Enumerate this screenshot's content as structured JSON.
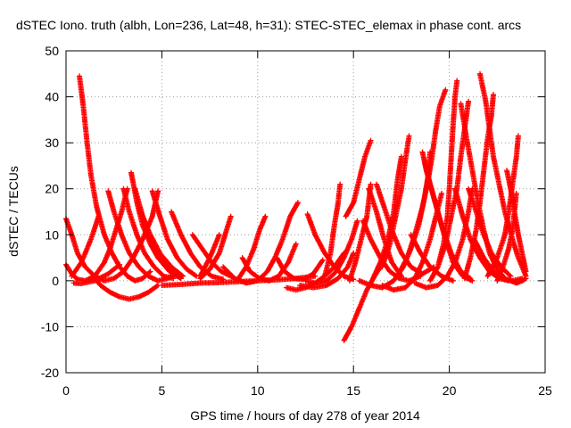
{
  "chart_data": {
    "type": "scatter",
    "title": "dSTEC Iono. truth (albh, Lon=236, Lat=48, h=31): STEC-STEC_elemax in phase cont. arcs",
    "xlabel": "GPS time / hours of day 278 of year 2014",
    "ylabel": "dSTEC  / TECUs",
    "xlim": [
      0,
      25
    ],
    "ylim": [
      -20,
      50
    ],
    "xticks": [
      0,
      5,
      10,
      15,
      20,
      25
    ],
    "yticks": [
      -20,
      -10,
      0,
      10,
      20,
      30,
      40,
      50
    ],
    "grid": true,
    "marker": "plus",
    "color": "#ff0000",
    "arcs": [
      [
        [
          0.0,
          13.5
        ],
        [
          0.3,
          10
        ],
        [
          0.6,
          6
        ],
        [
          1.0,
          3
        ],
        [
          1.5,
          1
        ],
        [
          2.0,
          0
        ],
        [
          2.5,
          0.5
        ],
        [
          3.0,
          2
        ],
        [
          3.5,
          5
        ],
        [
          4.0,
          9
        ],
        [
          4.5,
          14
        ],
        [
          4.8,
          19.5
        ]
      ],
      [
        [
          0.0,
          3.5
        ],
        [
          0.3,
          1.5
        ],
        [
          0.6,
          0.3
        ],
        [
          1.0,
          0
        ],
        [
          1.5,
          1
        ],
        [
          2.0,
          4
        ],
        [
          2.3,
          7
        ],
        [
          2.6,
          11
        ],
        [
          2.9,
          15
        ],
        [
          3.2,
          20
        ]
      ],
      [
        [
          0.3,
          1
        ],
        [
          0.8,
          4
        ],
        [
          1.3,
          9
        ],
        [
          1.7,
          14
        ]
      ],
      [
        [
          0.7,
          44.5
        ],
        [
          0.9,
          38
        ],
        [
          1.1,
          30
        ],
        [
          1.3,
          23
        ],
        [
          1.6,
          16
        ],
        [
          2.0,
          10
        ],
        [
          2.4,
          6
        ],
        [
          2.8,
          3
        ],
        [
          3.2,
          1
        ],
        [
          3.6,
          0
        ],
        [
          4.0,
          0.5
        ],
        [
          4.4,
          2
        ]
      ],
      [
        [
          0.4,
          -0.5
        ],
        [
          0.8,
          -0.6
        ],
        [
          1.5,
          0
        ],
        [
          2.2,
          1.5
        ],
        [
          2.8,
          3.5
        ]
      ],
      [
        [
          1.5,
          0.5
        ],
        [
          1.8,
          -1
        ],
        [
          2.3,
          -2.5
        ],
        [
          2.8,
          -3.5
        ],
        [
          3.3,
          -4
        ],
        [
          3.8,
          -3.5
        ],
        [
          4.3,
          -2.5
        ],
        [
          4.8,
          -1
        ]
      ],
      [
        [
          2.2,
          19.5
        ],
        [
          2.5,
          15
        ],
        [
          2.9,
          10
        ],
        [
          3.3,
          6
        ],
        [
          3.8,
          3
        ],
        [
          4.3,
          1
        ],
        [
          4.8,
          0
        ],
        [
          5.3,
          0.5
        ],
        [
          5.8,
          1.5
        ]
      ],
      [
        [
          3.0,
          20
        ],
        [
          3.3,
          15
        ],
        [
          3.7,
          10
        ],
        [
          4.1,
          6
        ],
        [
          4.6,
          3
        ],
        [
          5.1,
          1
        ],
        [
          5.6,
          0.5
        ]
      ],
      [
        [
          3.4,
          23.5
        ],
        [
          3.7,
          17
        ],
        [
          4.0,
          12
        ],
        [
          4.4,
          8
        ],
        [
          4.8,
          5
        ],
        [
          5.3,
          2.5
        ],
        [
          5.8,
          1
        ]
      ],
      [
        [
          3.6,
          20
        ],
        [
          4.0,
          14
        ],
        [
          4.4,
          9
        ],
        [
          4.9,
          5
        ],
        [
          5.4,
          2
        ],
        [
          6.0,
          0.5
        ]
      ],
      [
        [
          4.5,
          19.5
        ],
        [
          4.9,
          14
        ],
        [
          5.3,
          9
        ],
        [
          5.8,
          5
        ],
        [
          6.3,
          2.5
        ],
        [
          6.8,
          1
        ]
      ],
      [
        [
          3.9,
          15
        ],
        [
          4.4,
          10
        ],
        [
          4.9,
          6
        ],
        [
          5.5,
          3
        ],
        [
          6.1,
          1
        ]
      ],
      [
        [
          5.5,
          15
        ],
        [
          6.0,
          10
        ],
        [
          6.5,
          6
        ],
        [
          7.0,
          3
        ],
        [
          7.6,
          1
        ],
        [
          8.2,
          0.3
        ]
      ],
      [
        [
          6.6,
          10
        ],
        [
          7.1,
          7
        ],
        [
          7.6,
          4
        ],
        [
          8.1,
          2
        ],
        [
          8.7,
          0.8
        ]
      ],
      [
        [
          5.0,
          -1
        ],
        [
          6.0,
          -0.8
        ],
        [
          7.0,
          -0.5
        ],
        [
          8.0,
          -0.4
        ],
        [
          9.0,
          -0.2
        ],
        [
          10.0,
          0
        ],
        [
          11.0,
          0.2
        ],
        [
          12.0,
          0.5
        ],
        [
          13.0,
          1
        ]
      ],
      [
        [
          7.0,
          0.5
        ],
        [
          7.5,
          2.5
        ],
        [
          8.0,
          6
        ],
        [
          8.3,
          10
        ],
        [
          8.6,
          14
        ]
      ],
      [
        [
          7.0,
          1
        ],
        [
          7.5,
          5
        ],
        [
          8.0,
          10
        ]
      ],
      [
        [
          8.2,
          3
        ],
        [
          8.8,
          0.5
        ],
        [
          9.4,
          -0.5
        ],
        [
          10.0,
          0
        ],
        [
          10.5,
          2
        ],
        [
          10.9,
          5
        ],
        [
          11.3,
          9
        ],
        [
          11.7,
          14
        ],
        [
          12.1,
          17
        ]
      ],
      [
        [
          9.0,
          0.5
        ],
        [
          9.4,
          3
        ],
        [
          9.8,
          7
        ],
        [
          10.1,
          11
        ],
        [
          10.4,
          14
        ]
      ],
      [
        [
          9.2,
          5
        ],
        [
          9.6,
          2
        ],
        [
          10.1,
          0.5
        ],
        [
          10.6,
          0
        ],
        [
          11.1,
          1
        ],
        [
          11.6,
          4
        ],
        [
          12.0,
          8
        ]
      ],
      [
        [
          11.0,
          5
        ],
        [
          11.4,
          2
        ],
        [
          11.9,
          0.5
        ],
        [
          12.4,
          0.3
        ],
        [
          12.9,
          1.5
        ],
        [
          13.4,
          4.5
        ]
      ],
      [
        [
          11.5,
          -1.5
        ],
        [
          12.0,
          -2
        ],
        [
          12.5,
          -1.5
        ],
        [
          13.0,
          -0.5
        ],
        [
          13.5,
          1
        ],
        [
          14.0,
          3
        ],
        [
          14.5,
          6
        ]
      ],
      [
        [
          12.6,
          14.5
        ],
        [
          13.0,
          10
        ],
        [
          13.5,
          6
        ],
        [
          14.0,
          3
        ],
        [
          14.5,
          1
        ],
        [
          15.0,
          0.3
        ]
      ],
      [
        [
          12.5,
          0
        ],
        [
          13.0,
          -0.5
        ],
        [
          13.6,
          0
        ],
        [
          14.1,
          2
        ],
        [
          14.5,
          5
        ],
        [
          14.9,
          9
        ],
        [
          15.2,
          13
        ]
      ],
      [
        [
          12.2,
          -1
        ],
        [
          12.9,
          -1.5
        ],
        [
          13.6,
          -1
        ],
        [
          14.2,
          0.5
        ],
        [
          14.7,
          3
        ],
        [
          15.0,
          6
        ]
      ],
      [
        [
          14.8,
          0
        ],
        [
          15.1,
          4
        ],
        [
          15.4,
          9
        ],
        [
          15.7,
          14
        ],
        [
          15.9,
          21
        ]
      ],
      [
        [
          13.5,
          1
        ],
        [
          13.8,
          6
        ],
        [
          14.0,
          12
        ],
        [
          14.2,
          17
        ],
        [
          14.3,
          21
        ]
      ],
      [
        [
          14.5,
          -13
        ],
        [
          14.9,
          -10
        ],
        [
          15.3,
          -6
        ],
        [
          15.7,
          -2
        ],
        [
          16.1,
          1
        ],
        [
          16.4,
          3
        ]
      ],
      [
        [
          15.5,
          13
        ],
        [
          15.9,
          9
        ],
        [
          16.4,
          5
        ],
        [
          16.9,
          2
        ],
        [
          17.4,
          0.5
        ],
        [
          17.9,
          0
        ],
        [
          18.5,
          1
        ]
      ],
      [
        [
          14.6,
          14
        ],
        [
          15.0,
          17
        ],
        [
          15.3,
          22
        ],
        [
          15.6,
          27
        ],
        [
          15.9,
          30.5
        ]
      ],
      [
        [
          15.3,
          0
        ],
        [
          15.9,
          -1
        ],
        [
          16.5,
          -1.5
        ],
        [
          17.1,
          0
        ],
        [
          17.6,
          3
        ],
        [
          18.0,
          7
        ],
        [
          18.4,
          12
        ],
        [
          18.7,
          18
        ],
        [
          18.9,
          23
        ],
        [
          19.0,
          28
        ]
      ],
      [
        [
          15.8,
          20
        ],
        [
          16.2,
          15
        ],
        [
          16.6,
          9
        ],
        [
          17.0,
          4
        ],
        [
          17.5,
          1
        ]
      ],
      [
        [
          16.0,
          0.3
        ],
        [
          16.4,
          4
        ],
        [
          16.8,
          9
        ],
        [
          17.1,
          15
        ],
        [
          17.3,
          22
        ],
        [
          17.5,
          27
        ]
      ],
      [
        [
          16.2,
          21
        ],
        [
          16.6,
          16
        ],
        [
          17.0,
          11
        ],
        [
          17.5,
          6
        ],
        [
          18.0,
          3
        ],
        [
          18.6,
          1.5
        ],
        [
          19.2,
          3
        ]
      ],
      [
        [
          16.5,
          3
        ],
        [
          16.9,
          8
        ],
        [
          17.2,
          14
        ],
        [
          17.5,
          20
        ],
        [
          17.7,
          26
        ],
        [
          17.9,
          31.5
        ]
      ],
      [
        [
          17.3,
          1
        ],
        [
          17.8,
          5
        ],
        [
          18.2,
          10
        ],
        [
          18.6,
          16
        ],
        [
          18.9,
          22
        ],
        [
          19.1,
          27
        ],
        [
          19.3,
          33
        ],
        [
          19.5,
          38
        ],
        [
          19.8,
          41.5
        ]
      ],
      [
        [
          16.5,
          -1
        ],
        [
          17.1,
          -2
        ],
        [
          17.7,
          -1.5
        ],
        [
          18.2,
          0.5
        ],
        [
          18.6,
          4
        ],
        [
          19.0,
          9
        ],
        [
          19.3,
          14
        ],
        [
          19.6,
          19
        ]
      ],
      [
        [
          18.7,
          26
        ],
        [
          19.0,
          21
        ],
        [
          19.4,
          15
        ],
        [
          19.8,
          9
        ],
        [
          20.2,
          4
        ],
        [
          20.7,
          1
        ],
        [
          21.2,
          0
        ]
      ],
      [
        [
          18.6,
          28
        ],
        [
          18.8,
          24
        ],
        [
          19.2,
          18
        ],
        [
          19.6,
          12
        ],
        [
          20.1,
          6
        ],
        [
          20.6,
          2
        ],
        [
          21.1,
          0.5
        ]
      ],
      [
        [
          18.0,
          10
        ],
        [
          18.5,
          6
        ],
        [
          19.0,
          3
        ],
        [
          19.6,
          1
        ],
        [
          20.2,
          0
        ]
      ],
      [
        [
          18.2,
          -0.5
        ],
        [
          18.8,
          -1.5
        ],
        [
          19.4,
          -1
        ],
        [
          19.9,
          1
        ],
        [
          20.3,
          4
        ],
        [
          20.7,
          9
        ],
        [
          21.0,
          15
        ],
        [
          21.2,
          20
        ]
      ],
      [
        [
          19.0,
          0
        ],
        [
          19.4,
          3
        ],
        [
          19.8,
          8
        ],
        [
          20.1,
          14
        ],
        [
          20.4,
          20
        ],
        [
          20.6,
          27
        ],
        [
          20.8,
          33
        ],
        [
          21.0,
          39
        ]
      ],
      [
        [
          19.4,
          3
        ],
        [
          19.7,
          8
        ],
        [
          19.9,
          14
        ],
        [
          20.0,
          20
        ],
        [
          20.1,
          27
        ],
        [
          20.2,
          34
        ],
        [
          20.3,
          40
        ],
        [
          20.4,
          43.5
        ]
      ],
      [
        [
          20.6,
          38.5
        ],
        [
          20.9,
          31
        ],
        [
          21.2,
          24
        ],
        [
          21.5,
          17
        ],
        [
          21.8,
          11
        ],
        [
          22.1,
          6
        ],
        [
          22.5,
          2.5
        ],
        [
          22.9,
          0.5
        ]
      ],
      [
        [
          20.3,
          20
        ],
        [
          20.7,
          14
        ],
        [
          21.1,
          9
        ],
        [
          21.6,
          5
        ],
        [
          22.1,
          2
        ],
        [
          22.6,
          0.5
        ],
        [
          23.1,
          0
        ]
      ],
      [
        [
          20.8,
          0.5
        ],
        [
          21.1,
          5
        ],
        [
          21.4,
          11
        ],
        [
          21.6,
          17
        ],
        [
          21.8,
          24
        ],
        [
          22.0,
          31
        ],
        [
          22.2,
          36
        ],
        [
          22.3,
          40.5
        ]
      ],
      [
        [
          21.6,
          45
        ],
        [
          21.9,
          39
        ],
        [
          22.1,
          33
        ],
        [
          22.3,
          27
        ],
        [
          22.6,
          21
        ],
        [
          22.9,
          15
        ],
        [
          23.3,
          9
        ],
        [
          23.6,
          5
        ],
        [
          24.0,
          1
        ]
      ],
      [
        [
          21.3,
          9
        ],
        [
          21.8,
          5
        ],
        [
          22.3,
          2
        ],
        [
          22.8,
          0.5
        ],
        [
          23.3,
          0
        ],
        [
          23.8,
          0.5
        ]
      ],
      [
        [
          22.0,
          1
        ],
        [
          22.5,
          5
        ],
        [
          22.9,
          10
        ],
        [
          23.1,
          15
        ],
        [
          23.3,
          21
        ],
        [
          23.5,
          27
        ],
        [
          23.6,
          31.5
        ]
      ],
      [
        [
          22.5,
          0
        ],
        [
          22.8,
          3
        ],
        [
          23.1,
          7
        ],
        [
          23.3,
          11
        ],
        [
          23.4,
          15
        ],
        [
          23.5,
          19
        ]
      ],
      [
        [
          23.0,
          24
        ],
        [
          23.2,
          20
        ],
        [
          23.4,
          15
        ],
        [
          23.6,
          10
        ],
        [
          23.8,
          6
        ],
        [
          24.0,
          2
        ]
      ],
      [
        [
          23.2,
          0
        ],
        [
          23.5,
          -0.5
        ],
        [
          23.8,
          0
        ],
        [
          24.0,
          0.5
        ]
      ],
      [
        [
          21.0,
          20
        ],
        [
          21.4,
          15
        ],
        [
          21.8,
          10
        ],
        [
          22.2,
          6
        ],
        [
          22.7,
          3
        ],
        [
          23.2,
          1
        ]
      ]
    ]
  }
}
